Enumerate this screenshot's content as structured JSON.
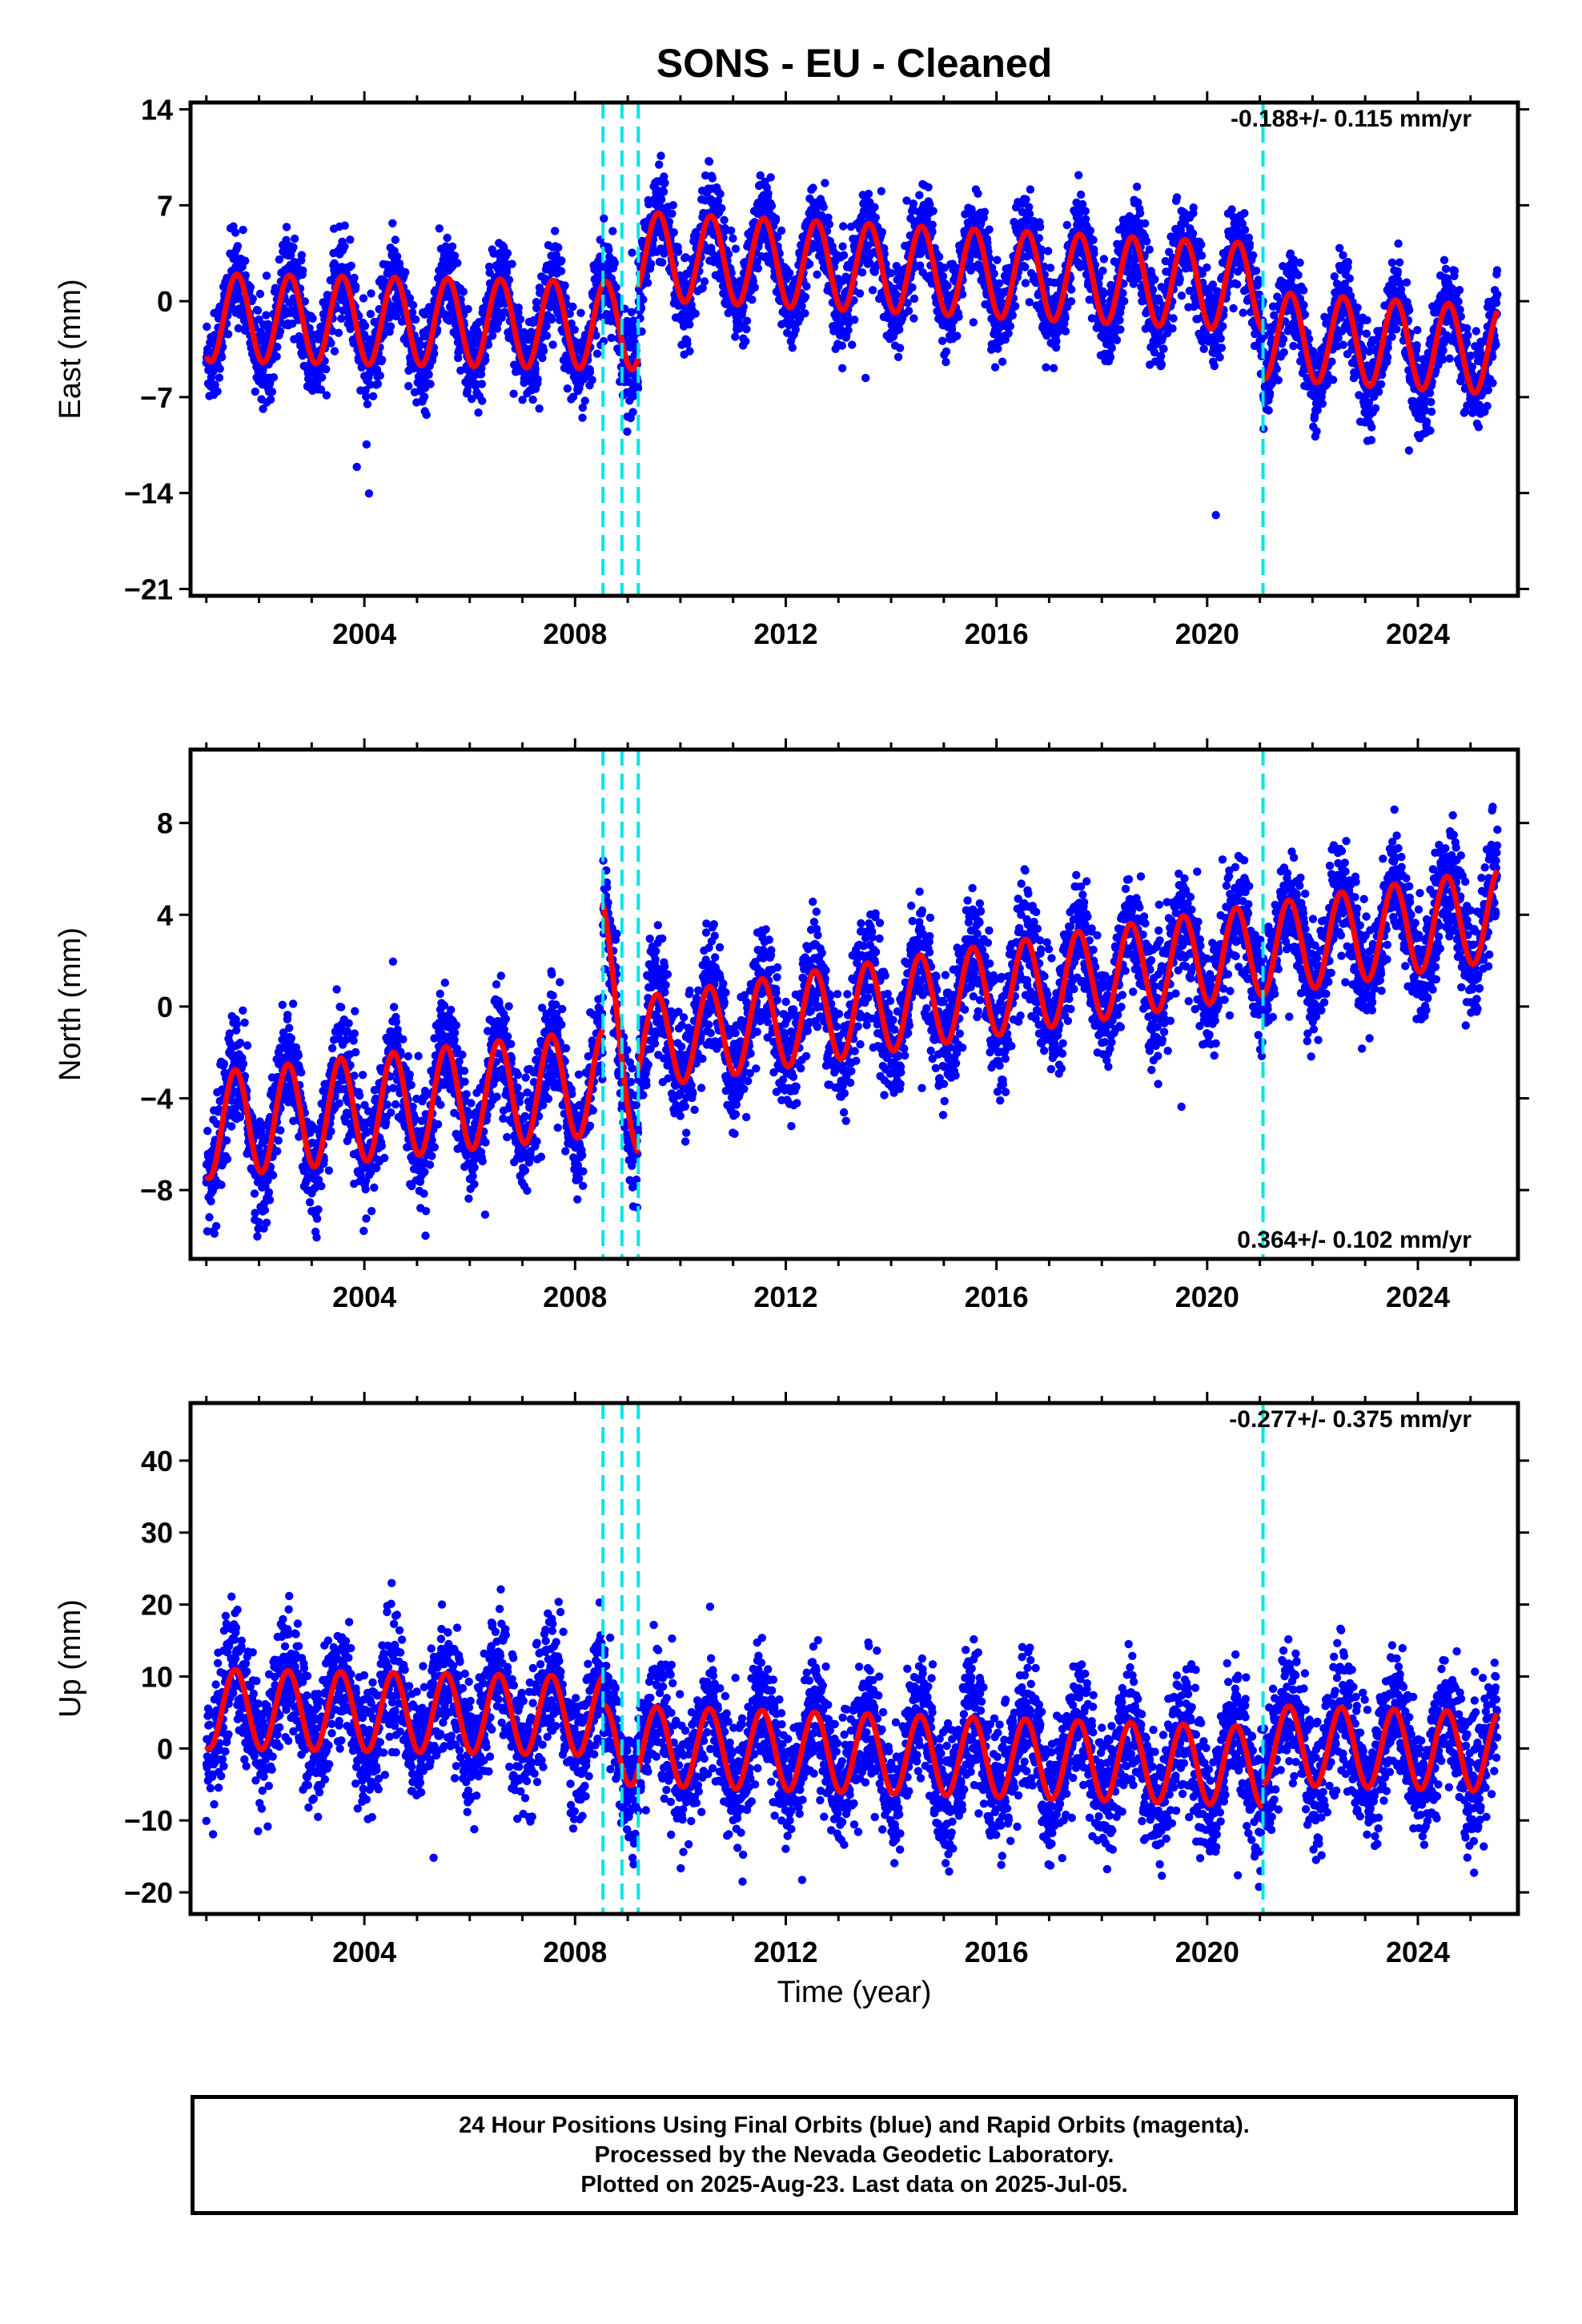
{
  "chart_data": {
    "title": "SONS  - EU - Cleaned",
    "xlabel": "Time (year)",
    "xlim": [
      2000.7,
      2025.9
    ],
    "xticks": [
      "2004",
      "2008",
      "2012",
      "2016",
      "2020",
      "2024"
    ],
    "step_offsets": [
      2008.53,
      2008.89,
      2009.2,
      2021.06
    ],
    "series_legend": {
      "final_orbits_color": "#0000ff",
      "model_color": "#ff0000",
      "offset_color": "#00e5e5"
    },
    "panels": [
      {
        "type": "scatter",
        "name": "east",
        "ylabel": "East (mm)",
        "ylim": [
          -21.5,
          14.5
        ],
        "yticks": [
          14,
          7,
          0,
          -7,
          -14,
          -21
        ],
        "ytick_labels": [
          "14",
          "7",
          "0",
          "−7",
          "−14",
          "−21"
        ],
        "rate_label": "-0.188+/- 0.115 mm/yr",
        "rate_position": "top-right",
        "model": {
          "segments": [
            {
              "x0": 2001.0,
              "x1": 2009.2,
              "baseline_start": -1.2,
              "baseline_end": -1.8,
              "annual_amplitude": 3.2,
              "peak_phase": 0.58
            },
            {
              "x0": 2009.2,
              "x1": 2021.06,
              "baseline_start": 3.3,
              "baseline_end": 1.0,
              "annual_amplitude": 3.2,
              "peak_phase": 0.58
            },
            {
              "x0": 2021.06,
              "x1": 2025.51,
              "baseline_start": -2.5,
              "baseline_end": -3.6,
              "annual_amplitude": 3.2,
              "peak_phase": 0.58
            }
          ]
        },
        "noise_sd": 1.6
      },
      {
        "type": "scatter",
        "name": "north",
        "ylabel": "North (mm)",
        "ylim": [
          -11,
          11.2
        ],
        "yticks": [
          8,
          4,
          0,
          -4,
          -8
        ],
        "ytick_labels": [
          "8",
          "4",
          "0",
          "−4",
          "−8"
        ],
        "rate_label": "0.364+/- 0.102 mm/yr",
        "rate_position": "bottom-right",
        "model": {
          "segments": [
            {
              "x0": 2001.0,
              "x1": 2008.53,
              "baseline_start": -5.2,
              "baseline_end": -3.3,
              "annual_amplitude": 2.3,
              "peak_phase": 0.55
            },
            {
              "x0": 2008.53,
              "x1": 2009.2,
              "baseline_start": 3.0,
              "baseline_end": -5.5,
              "annual_amplitude": 1.5,
              "peak_phase": 0.55
            },
            {
              "x0": 2009.2,
              "x1": 2025.51,
              "baseline_start": -1.6,
              "baseline_end": 4.0,
              "annual_amplitude": 2.0,
              "peak_phase": 0.55
            }
          ]
        },
        "noise_sd": 1.2
      },
      {
        "type": "scatter",
        "name": "up",
        "ylabel": "Up (mm)",
        "ylim": [
          -23,
          48
        ],
        "yticks": [
          40,
          30,
          20,
          10,
          0,
          -10,
          -20
        ],
        "ytick_labels": [
          "40",
          "30",
          "20",
          "10",
          "0",
          "−10",
          "−20"
        ],
        "rate_label": "-0.277+/- 0.375 mm/yr",
        "rate_position": "top-right",
        "model": {
          "segments": [
            {
              "x0": 2001.0,
              "x1": 2008.53,
              "baseline_start": 5.5,
              "baseline_end": 4.5,
              "annual_amplitude": 5.5,
              "peak_phase": 0.55
            },
            {
              "x0": 2008.53,
              "x1": 2021.06,
              "baseline_start": 0.5,
              "baseline_end": -2.5,
              "annual_amplitude": 5.5,
              "peak_phase": 0.55
            },
            {
              "x0": 2021.06,
              "x1": 2025.51,
              "baseline_start": 0.5,
              "baseline_end": -0.5,
              "annual_amplitude": 5.5,
              "peak_phase": 0.55
            }
          ]
        },
        "noise_sd": 4.3
      }
    ]
  },
  "footer": {
    "line1": "24 Hour Positions Using Final Orbits (blue) and Rapid Orbits (magenta).",
    "line2": "Processed by the Nevada Geodetic Laboratory.",
    "line3": "Plotted on 2025-Aug-23. Last data on 2025-Jul-05."
  }
}
